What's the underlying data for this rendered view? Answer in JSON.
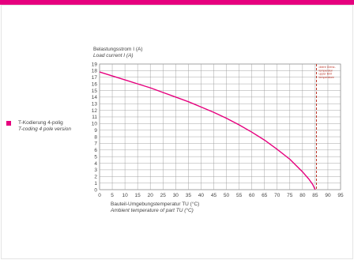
{
  "legend": {
    "line1": "T-Kodierung 4-polig",
    "line2": "T-coding 4 pole version",
    "color": "#e6007e"
  },
  "chart_data": {
    "type": "line",
    "title": "",
    "ylabel_de": "Belastungsstrom I (A)",
    "ylabel_en": "Load current I (A)",
    "xlabel_de": "Bauteil-Umgebungstemperatur TU (°C)",
    "xlabel_en": "Ambient temperature of part TU (°C)",
    "xlim": [
      0,
      95
    ],
    "ylim": [
      0,
      19
    ],
    "xticks": [
      0,
      5,
      10,
      15,
      20,
      25,
      30,
      35,
      40,
      45,
      50,
      55,
      60,
      65,
      70,
      75,
      80,
      85,
      90,
      95
    ],
    "yticks": [
      0,
      1,
      2,
      3,
      4,
      5,
      6,
      7,
      8,
      9,
      10,
      11,
      12,
      13,
      14,
      15,
      16,
      17,
      18,
      19
    ],
    "grid": true,
    "series": [
      {
        "name": "T-Kodierung 4-polig",
        "color": "#e6007e",
        "x": [
          0,
          5,
          10,
          15,
          20,
          25,
          30,
          35,
          40,
          45,
          50,
          55,
          60,
          65,
          70,
          75,
          80,
          82.5,
          84,
          85
        ],
        "y": [
          17.8,
          17.2,
          16.6,
          16.0,
          15.4,
          14.7,
          14.0,
          13.3,
          12.5,
          11.7,
          10.8,
          9.8,
          8.7,
          7.5,
          6.1,
          4.6,
          2.7,
          1.6,
          0.8,
          0
        ]
      }
    ],
    "limit_line": {
      "x": 85.5,
      "color": "#c0392b",
      "label": [
        "obere Grenz-",
        "temperatur",
        "upper limit",
        "temperature"
      ]
    }
  }
}
